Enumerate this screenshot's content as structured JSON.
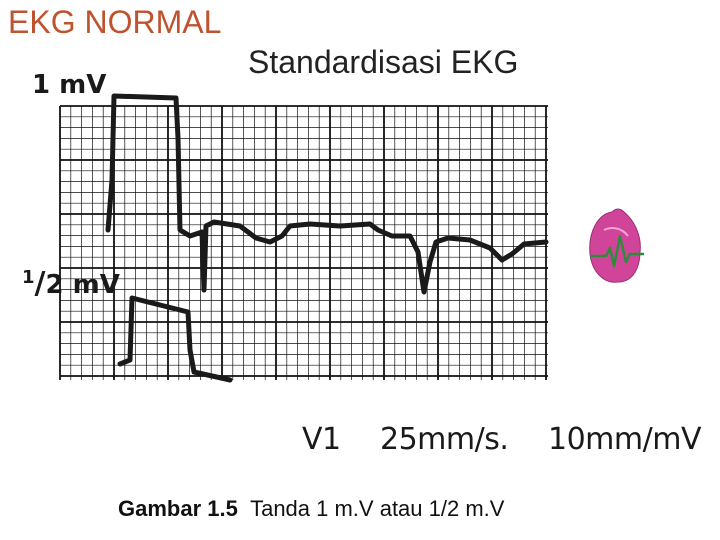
{
  "slide": {
    "title": "EKG NORMAL",
    "subtitle": "Standardisasi EKG"
  },
  "figure": {
    "label_top": "1 mV",
    "label_half_numer": "1",
    "label_half_slash": "/",
    "label_half_denom": "2",
    "label_half_unit": "mV",
    "lead": "V1",
    "speed": "25mm/s.",
    "gain": "10mm/mV"
  },
  "caption": {
    "number": "Gambar 1.5",
    "text": "Tanda 1 m.V atau 1/2 m.V"
  },
  "colors": {
    "title": "#c0532f",
    "grid": "#111111",
    "trace": "#1a1a1a",
    "heart": "#d0459a",
    "heart_ecg": "#2e8b3a"
  },
  "icons": [
    "heart-ecg-icon"
  ]
}
